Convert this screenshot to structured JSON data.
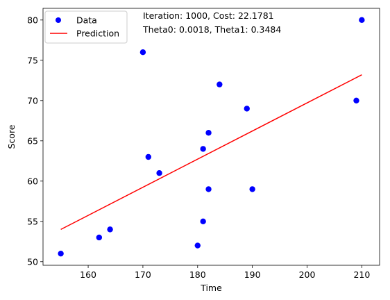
{
  "chart_data": {
    "type": "scatter",
    "xlabel": "Time",
    "ylabel": "Score",
    "xlim": [
      151.75,
      213.25
    ],
    "ylim": [
      49.55,
      81.45
    ],
    "xticks": [
      160,
      170,
      180,
      190,
      200,
      210
    ],
    "yticks": [
      50,
      55,
      60,
      65,
      70,
      75,
      80
    ],
    "grid": false,
    "legend_position": "top-left",
    "annotations": [
      "Iteration: 1000, Cost: 22.1781",
      "Theta0: 0.0018, Theta1: 0.3484"
    ],
    "series": [
      {
        "name": "Data",
        "kind": "scatter",
        "color": "#0000ff",
        "points": [
          [
            155,
            51
          ],
          [
            162,
            53
          ],
          [
            164,
            54
          ],
          [
            170,
            76
          ],
          [
            171,
            63
          ],
          [
            173,
            61
          ],
          [
            180,
            52
          ],
          [
            181,
            64
          ],
          [
            181,
            55
          ],
          [
            182,
            66
          ],
          [
            182,
            59
          ],
          [
            184,
            72
          ],
          [
            189,
            69
          ],
          [
            190,
            59
          ],
          [
            209,
            70
          ],
          [
            210,
            80
          ]
        ]
      },
      {
        "name": "Prediction",
        "kind": "line",
        "color": "#ff0000",
        "points": [
          [
            155,
            54.0
          ],
          [
            210,
            73.2
          ]
        ]
      }
    ]
  }
}
